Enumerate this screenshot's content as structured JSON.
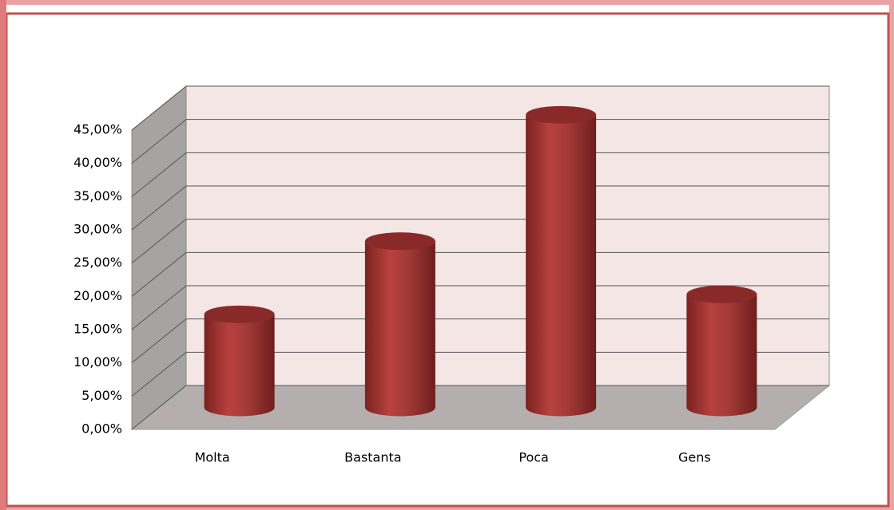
{
  "chart_data": {
    "type": "bar3d",
    "categories": [
      "Molta",
      "Bastanta",
      "Poca",
      "Gens"
    ],
    "values": [
      14,
      25,
      44,
      17
    ],
    "color": "#a33a38",
    "ylim": [
      0,
      45
    ],
    "yticks": [
      {
        "value": 0,
        "label": "0,00%"
      },
      {
        "value": 5,
        "label": "5,00%"
      },
      {
        "value": 10,
        "label": "10,00%"
      },
      {
        "value": 15,
        "label": "15,00%"
      },
      {
        "value": 20,
        "label": "20,00%"
      },
      {
        "value": 25,
        "label": "25,00%"
      },
      {
        "value": 30,
        "label": "30,00%"
      },
      {
        "value": 35,
        "label": "35,00%"
      },
      {
        "value": 40,
        "label": "40,00%"
      },
      {
        "value": 45,
        "label": "45,00%"
      }
    ],
    "grid": true
  }
}
